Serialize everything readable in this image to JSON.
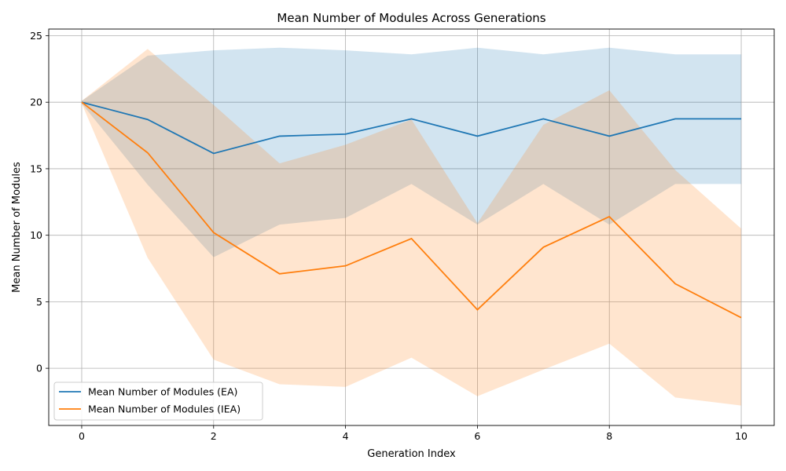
{
  "chart_data": {
    "type": "line",
    "title": "Mean Number of Modules Across Generations",
    "xlabel": "Generation Index",
    "ylabel": "Mean Number of Modules",
    "x": [
      0,
      1,
      2,
      3,
      4,
      5,
      6,
      7,
      8,
      9,
      10
    ],
    "xlim": [
      -0.5,
      10.5
    ],
    "ylim": [
      -4.3,
      25.5
    ],
    "xticks": [
      0,
      2,
      4,
      6,
      8,
      10
    ],
    "yticks": [
      0,
      5,
      10,
      15,
      20,
      25
    ],
    "grid": true,
    "legend_position": "lower-left",
    "series": [
      {
        "name": "Mean Number of Modules (EA)",
        "color": "#1f77b4",
        "band_color": "#1f77b4",
        "values": [
          20.0,
          18.7,
          16.15,
          17.45,
          17.6,
          18.75,
          17.45,
          18.75,
          17.45,
          18.75,
          18.75
        ],
        "upper": [
          20.1,
          23.5,
          23.9,
          24.1,
          23.9,
          23.6,
          24.1,
          23.6,
          24.1,
          23.6,
          23.6
        ],
        "lower": [
          19.9,
          13.8,
          8.35,
          10.8,
          11.3,
          13.85,
          10.8,
          13.85,
          10.8,
          13.85,
          13.85
        ]
      },
      {
        "name": "Mean Number of Modules (IEA)",
        "color": "#ff7f0e",
        "band_color": "#ff7f0e",
        "values": [
          20.0,
          16.2,
          10.2,
          7.1,
          7.7,
          9.75,
          4.4,
          9.1,
          11.4,
          6.35,
          3.8
        ],
        "upper": [
          20.1,
          24.0,
          19.8,
          15.4,
          16.8,
          18.7,
          10.9,
          18.3,
          20.9,
          14.9,
          10.5
        ],
        "lower": [
          19.9,
          8.3,
          0.65,
          -1.2,
          -1.4,
          0.8,
          -2.1,
          -0.1,
          1.85,
          -2.2,
          -2.8
        ]
      }
    ]
  }
}
